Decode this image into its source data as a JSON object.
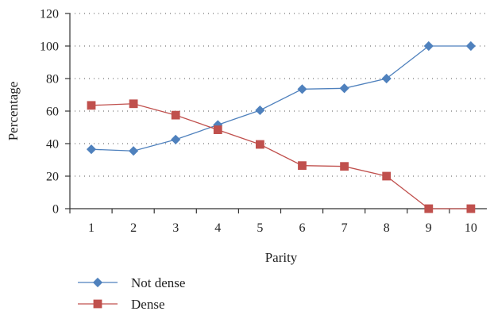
{
  "chart_data": {
    "type": "line",
    "title": "",
    "xlabel": "Parity",
    "ylabel": "Percentage",
    "x": [
      1,
      2,
      3,
      4,
      5,
      6,
      7,
      8,
      9,
      10
    ],
    "x_tick_labels": [
      "1",
      "2",
      "3",
      "4",
      "5",
      "6",
      "7",
      "8",
      "9",
      "10"
    ],
    "y_tick_labels": [
      "0",
      "20",
      "40",
      "60",
      "80",
      "100",
      "120"
    ],
    "y_ticks": [
      0,
      20,
      40,
      60,
      80,
      100,
      120
    ],
    "ylim": [
      0,
      120
    ],
    "grid": "horizontal dotted",
    "legend_position": "bottom-left",
    "series": [
      {
        "name": "Not dense",
        "color": "#4f81bd",
        "marker": "diamond",
        "values": [
          36.5,
          35.5,
          42.5,
          51.5,
          60.5,
          73.5,
          74,
          80,
          100,
          100
        ]
      },
      {
        "name": "Dense",
        "color": "#c0504d",
        "marker": "square",
        "values": [
          63.5,
          64.5,
          57.5,
          48.5,
          39.5,
          26.5,
          26,
          20,
          0,
          0
        ]
      }
    ]
  }
}
